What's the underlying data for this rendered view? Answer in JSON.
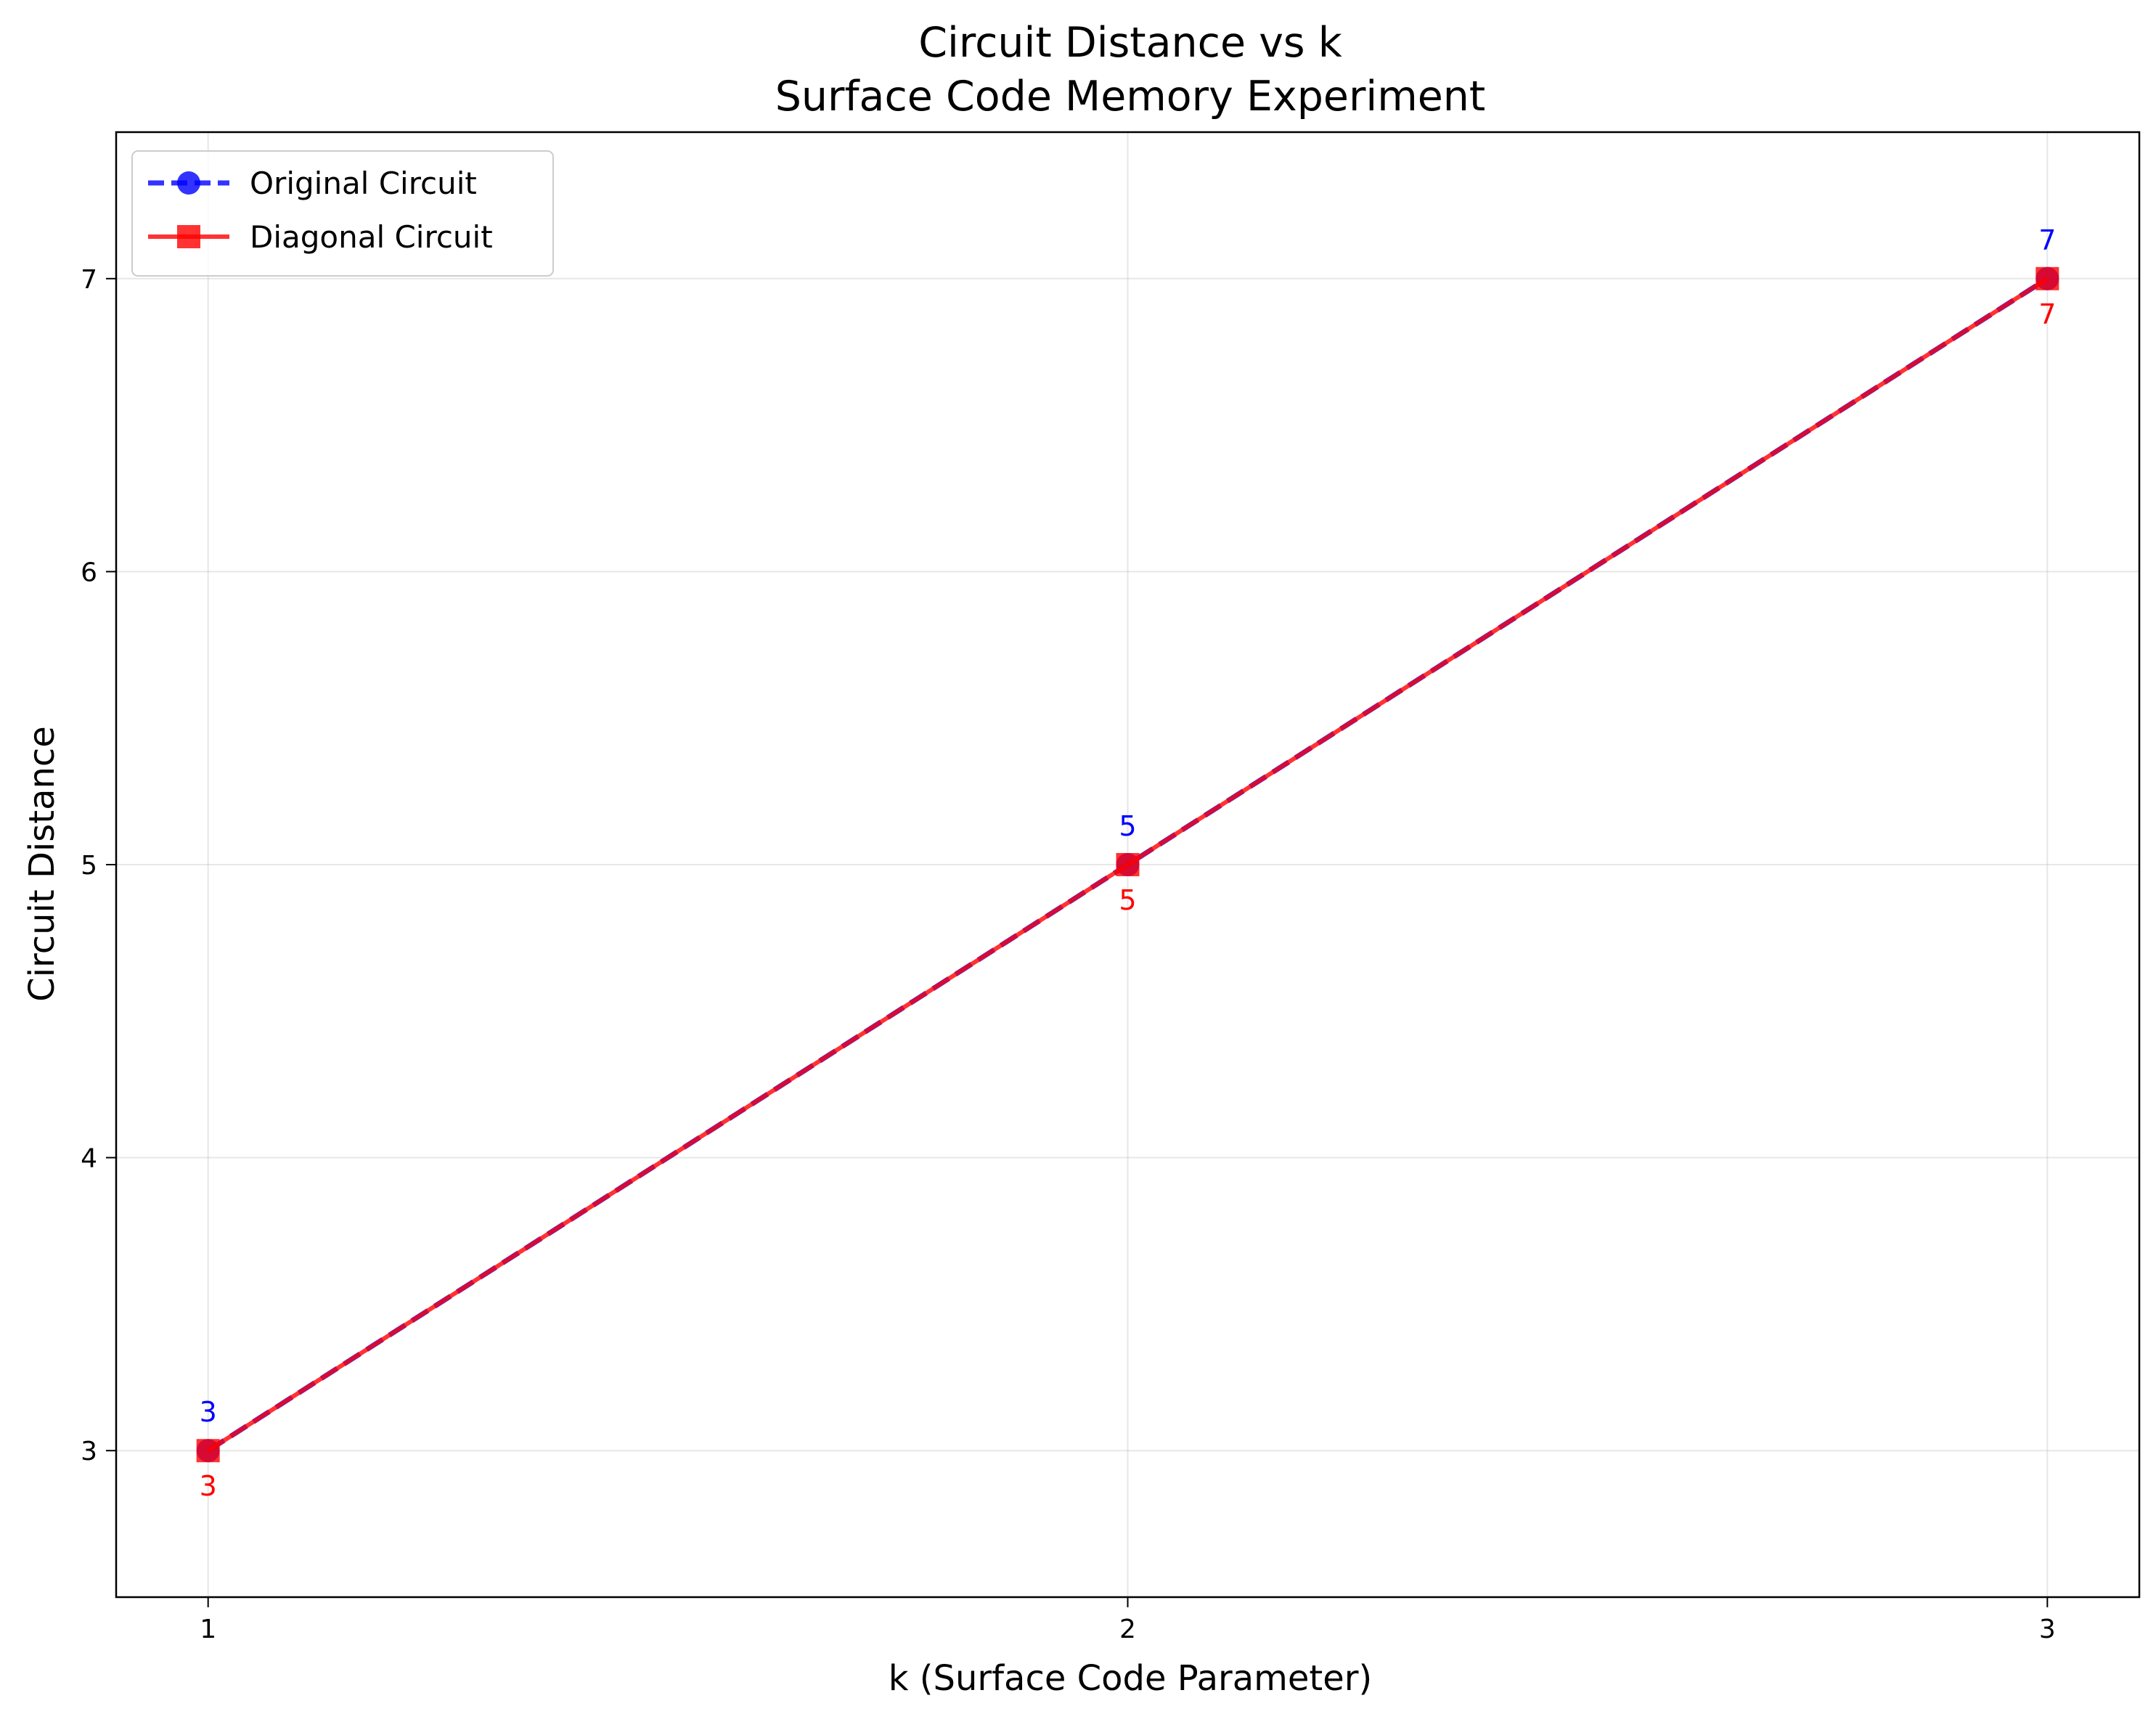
{
  "chart_data": {
    "type": "line",
    "title": "Circuit Distance vs k",
    "subtitle": "Surface Code Memory Experiment",
    "xlabel": "k (Surface Code Parameter)",
    "ylabel": "Circuit Distance",
    "x": [
      1,
      2,
      3
    ],
    "x_ticks": [
      "1",
      "2",
      "3"
    ],
    "y_ticks": [
      "3",
      "4",
      "5",
      "6",
      "7"
    ],
    "xlim": [
      0.9,
      3.1
    ],
    "ylim": [
      2.5,
      7.5
    ],
    "grid": true,
    "legend_position": "top-left",
    "series": [
      {
        "name": "Original Circuit",
        "values": [
          3,
          5,
          7
        ],
        "color": "#0000ff",
        "line_style": "dashed",
        "marker": "circle",
        "data_labels": [
          "3",
          "5",
          "7"
        ],
        "label_position": "above"
      },
      {
        "name": "Diagonal Circuit",
        "values": [
          3,
          5,
          7
        ],
        "color": "#ff0000",
        "line_style": "solid",
        "marker": "square",
        "data_labels": [
          "3",
          "5",
          "7"
        ],
        "label_position": "below"
      }
    ]
  }
}
